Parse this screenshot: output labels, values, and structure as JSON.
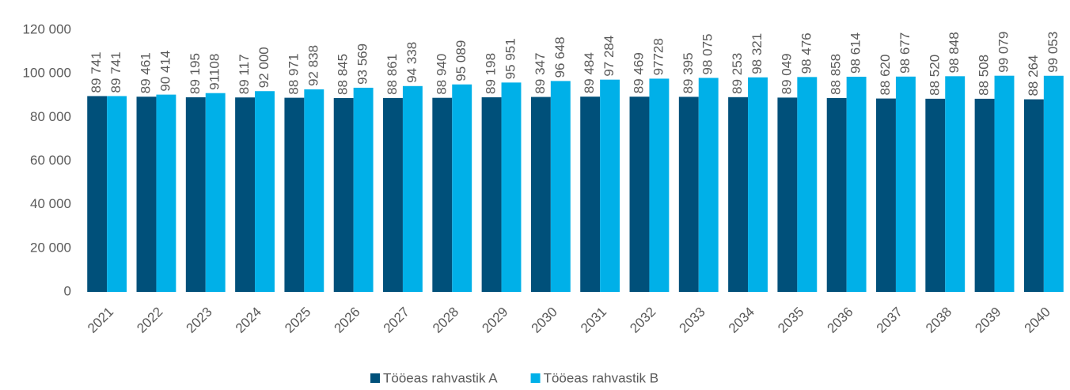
{
  "chart_data": {
    "type": "bar",
    "categories": [
      "2021",
      "2022",
      "2023",
      "2024",
      "2025",
      "2026",
      "2027",
      "2028",
      "2029",
      "2030",
      "2031",
      "2032",
      "2033",
      "2034",
      "2035",
      "2036",
      "2037",
      "2038",
      "2039",
      "2040"
    ],
    "series": [
      {
        "name": "Tööeas rahvastik A",
        "color": "#00507a",
        "values": [
          89741,
          89461,
          89195,
          89117,
          88971,
          88845,
          88861,
          88940,
          89198,
          89347,
          89484,
          89469,
          89395,
          89253,
          89049,
          88858,
          88620,
          88520,
          88508,
          88264
        ],
        "value_labels": [
          "89 741",
          "89 461",
          "89 195",
          "89 117",
          "88 971",
          "88 845",
          "88 861",
          "88 940",
          "89 198",
          "89 347",
          "89 484",
          "89 469",
          "89 395",
          "89 253",
          "89 049",
          "88 858",
          "88 620",
          "88 520",
          "88 508",
          "88 264"
        ]
      },
      {
        "name": "Tööeas rahvastik B",
        "color": "#00b0e8",
        "values": [
          89741,
          90414,
          91108,
          92000,
          92838,
          93569,
          94338,
          95089,
          95951,
          96648,
          97284,
          97728,
          98075,
          98321,
          98476,
          98614,
          98677,
          98848,
          99079,
          99053
        ],
        "value_labels": [
          "89 741",
          "90 414",
          "91108",
          "92 000",
          "92 838",
          "93 569",
          "94 338",
          "95 089",
          "95 951",
          "96 648",
          "97 284",
          "97728",
          "98 075",
          "98 321",
          "98 476",
          "98 614",
          "98 677",
          "98 848",
          "99 079",
          "99 053"
        ]
      }
    ],
    "ylim": [
      0,
      120000
    ],
    "yticks": [
      0,
      {
        "value": 20000,
        "label": "20 000"
      },
      {
        "value": 40000,
        "label": "40 000"
      },
      {
        "value": 60000,
        "label": "60 000"
      },
      {
        "value": 80000,
        "label": "80 000"
      },
      {
        "value": 100000,
        "label": "100 000"
      },
      {
        "value": 120000,
        "label": "120 000"
      }
    ],
    "grid": false,
    "legend": "bottom"
  }
}
